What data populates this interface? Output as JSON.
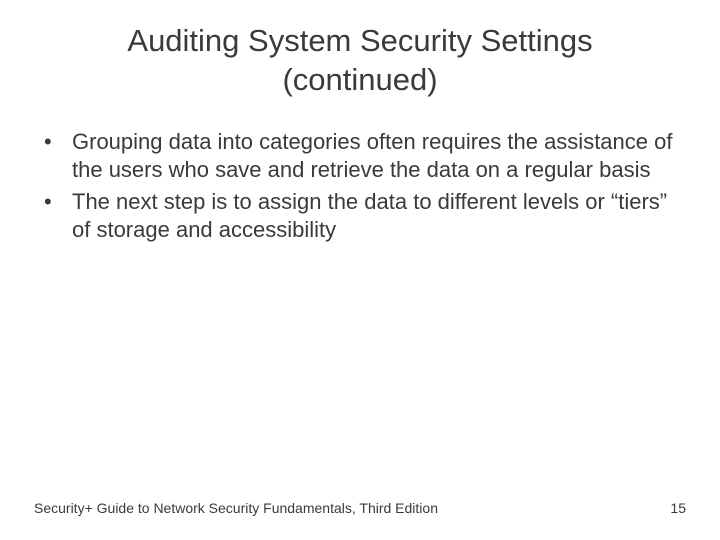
{
  "slide": {
    "title_line1": "Auditing System Security Settings",
    "title_line2": "(continued)",
    "bullets": [
      "Grouping data into categories often requires the assistance of the users who save and retrieve the data on a regular basis",
      "The next step is to assign the data to different levels or “tiers” of storage and accessibility"
    ],
    "footer_text": "Security+ Guide to Network Security Fundamentals, Third Edition",
    "page_number": "15",
    "style": {
      "background_color": "#ffffff",
      "title_fontsize": 31,
      "body_fontsize": 22,
      "footer_fontsize": 14,
      "text_color": "#3a3a3a",
      "font_family": "Arial"
    }
  }
}
